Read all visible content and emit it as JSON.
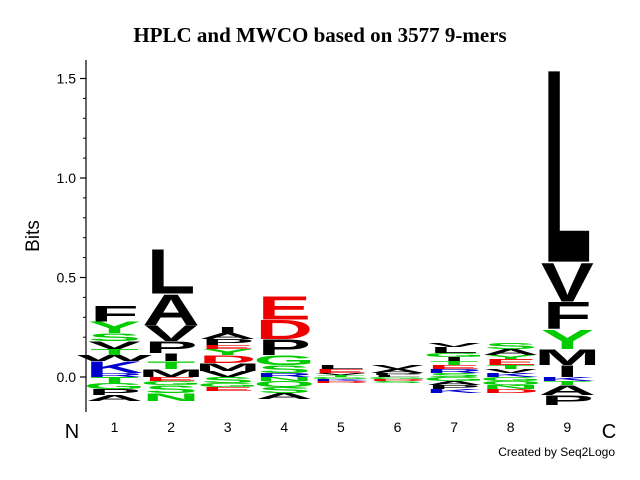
{
  "chart_data": {
    "type": "sequence-logo",
    "title": "HPLC and MWCO based on 3577 9-mers",
    "ylabel": "Bits",
    "xlabel_left": "N",
    "xlabel_right": "C",
    "ylim": [
      -0.18,
      1.6
    ],
    "yticks": [
      "0.0",
      "0.5",
      "1.0",
      "1.5"
    ],
    "ytick_values": [
      0.0,
      0.5,
      1.0,
      1.5
    ],
    "positions": [
      "1",
      "2",
      "3",
      "4",
      "5",
      "6",
      "7",
      "8",
      "9"
    ],
    "stacks": [
      {
        "up": [
          [
            "R",
            0.02
          ],
          [
            "K",
            0.06
          ],
          [
            "W",
            0.03
          ],
          [
            "T",
            0.03
          ],
          [
            "V",
            0.04
          ],
          [
            "S",
            0.04
          ],
          [
            "Y",
            0.06
          ],
          [
            "F",
            0.08
          ]
        ],
        "down": [
          [
            "T",
            0.03
          ],
          [
            "G",
            0.03
          ],
          [
            "P",
            0.03
          ],
          [
            "A",
            0.03
          ]
        ]
      },
      {
        "up": [
          [
            "M",
            0.04
          ],
          [
            "T",
            0.04
          ],
          [
            "I",
            0.04
          ],
          [
            "P",
            0.06
          ],
          [
            "V",
            0.08
          ],
          [
            "A",
            0.16
          ],
          [
            "L",
            0.23
          ]
        ],
        "down": [
          [
            "E",
            0.02
          ],
          [
            "G",
            0.02
          ],
          [
            "S",
            0.04
          ],
          [
            "N",
            0.04
          ]
        ]
      },
      {
        "up": [
          [
            "V",
            0.03
          ],
          [
            "M",
            0.04
          ],
          [
            "D",
            0.04
          ],
          [
            "Y",
            0.03
          ],
          [
            "E",
            0.02
          ],
          [
            "P",
            0.03
          ],
          [
            "A",
            0.03
          ],
          [
            "I",
            0.03
          ]
        ],
        "down": [
          [
            "S",
            0.03
          ],
          [
            "G",
            0.02
          ],
          [
            "E",
            0.02
          ]
        ]
      },
      {
        "up": [
          [
            "R",
            0.02
          ],
          [
            "S",
            0.04
          ],
          [
            "G",
            0.05
          ],
          [
            "P",
            0.08
          ],
          [
            "D",
            0.1
          ],
          [
            "E",
            0.12
          ]
        ],
        "down": [
          [
            "N",
            0.02
          ],
          [
            "Q",
            0.03
          ],
          [
            "S",
            0.03
          ],
          [
            "A",
            0.03
          ]
        ]
      },
      {
        "up": [
          [
            "T",
            0.01
          ],
          [
            "V",
            0.01
          ],
          [
            "E",
            0.02
          ],
          [
            "L",
            0.02
          ]
        ],
        "down": [
          [
            "G",
            0.01
          ],
          [
            "K",
            0.01
          ],
          [
            "D",
            0.01
          ]
        ]
      },
      {
        "up": [
          [
            "L",
            0.01
          ],
          [
            "P",
            0.01
          ],
          [
            "A",
            0.02
          ],
          [
            "V",
            0.02
          ]
        ],
        "down": [
          [
            "G",
            0.01
          ],
          [
            "D",
            0.01
          ],
          [
            "S",
            0.01
          ]
        ]
      },
      {
        "up": [
          [
            "S",
            0.02
          ],
          [
            "R",
            0.02
          ],
          [
            "E",
            0.02
          ],
          [
            "T",
            0.02
          ],
          [
            "I",
            0.02
          ],
          [
            "G",
            0.02
          ],
          [
            "L",
            0.03
          ],
          [
            "V",
            0.02
          ]
        ],
        "down": [
          [
            "G",
            0.02
          ],
          [
            "A",
            0.02
          ],
          [
            "P",
            0.02
          ],
          [
            "K",
            0.02
          ]
        ]
      },
      {
        "up": [
          [
            "K",
            0.02
          ],
          [
            "V",
            0.02
          ],
          [
            "T",
            0.02
          ],
          [
            "E",
            0.03
          ],
          [
            "Y",
            0.02
          ],
          [
            "A",
            0.03
          ],
          [
            "S",
            0.03
          ]
        ],
        "down": [
          [
            "G",
            0.02
          ],
          [
            "Q",
            0.02
          ],
          [
            "N",
            0.02
          ],
          [
            "D",
            0.02
          ]
        ]
      },
      {
        "up": [
          [
            "I",
            0.06
          ],
          [
            "M",
            0.08
          ],
          [
            "Y",
            0.1
          ],
          [
            "F",
            0.14
          ],
          [
            "V",
            0.2
          ],
          [
            "L",
            1.0
          ]
        ],
        "down": [
          [
            "K",
            0.02
          ],
          [
            "T",
            0.02
          ],
          [
            "A",
            0.05
          ],
          [
            "P",
            0.05
          ]
        ]
      }
    ],
    "colors": {
      "hydrophobic": "#000000",
      "polar": "#00cc00",
      "acidic": "#ee0000",
      "basic": "#0000cc",
      "other": "#8888cc"
    }
  },
  "credit": "Created by Seq2Logo"
}
